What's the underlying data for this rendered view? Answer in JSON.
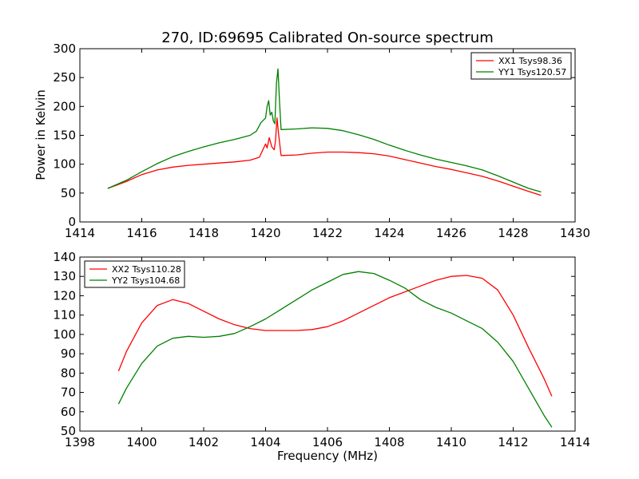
{
  "chart_data": [
    {
      "type": "line",
      "title": "270, ID:69695 Calibrated On-source spectrum",
      "xlabel": "",
      "ylabel": "Power in Kelvin",
      "xlim": [
        1414,
        1430
      ],
      "ylim": [
        0,
        300
      ],
      "xticks": [
        1414,
        1416,
        1418,
        1420,
        1422,
        1424,
        1426,
        1428,
        1430
      ],
      "yticks": [
        0,
        50,
        100,
        150,
        200,
        250,
        300
      ],
      "legend_position": "top-right",
      "series": [
        {
          "name": "XX1 Tsys98.36",
          "color": "#ff0000",
          "x": [
            1414.9,
            1415.5,
            1416.0,
            1416.5,
            1417.0,
            1417.5,
            1418.0,
            1418.5,
            1419.0,
            1419.5,
            1419.8,
            1420.0,
            1420.05,
            1420.12,
            1420.2,
            1420.28,
            1420.32,
            1420.37,
            1420.42,
            1420.5,
            1421.0,
            1421.5,
            1422.0,
            1422.5,
            1423.0,
            1423.5,
            1424.0,
            1424.5,
            1425.0,
            1425.5,
            1426.0,
            1426.5,
            1427.0,
            1427.5,
            1428.0,
            1428.5,
            1428.9
          ],
          "y": [
            58,
            70,
            82,
            90,
            95,
            98,
            100,
            102,
            104,
            107,
            112,
            135,
            128,
            146,
            130,
            125,
            140,
            180,
            152,
            115,
            116,
            119,
            121,
            121,
            120,
            118,
            114,
            108,
            102,
            96,
            91,
            85,
            79,
            71,
            62,
            53,
            46
          ]
        },
        {
          "name": "YY1 Tsys120.57",
          "color": "#008000",
          "x": [
            1414.9,
            1415.5,
            1416.0,
            1416.5,
            1417.0,
            1417.5,
            1418.0,
            1418.5,
            1419.0,
            1419.5,
            1419.7,
            1419.85,
            1420.0,
            1420.05,
            1420.1,
            1420.15,
            1420.2,
            1420.25,
            1420.3,
            1420.35,
            1420.4,
            1420.45,
            1420.5,
            1421.0,
            1421.5,
            1422.0,
            1422.5,
            1423.0,
            1423.5,
            1424.0,
            1424.5,
            1425.0,
            1425.5,
            1426.0,
            1426.5,
            1427.0,
            1427.5,
            1428.0,
            1428.5,
            1428.9
          ],
          "y": [
            58,
            72,
            87,
            101,
            113,
            122,
            130,
            137,
            143,
            150,
            157,
            172,
            180,
            200,
            210,
            185,
            190,
            175,
            170,
            240,
            265,
            210,
            160,
            161,
            163,
            162,
            158,
            151,
            143,
            133,
            124,
            116,
            109,
            103,
            97,
            90,
            80,
            69,
            58,
            52
          ]
        }
      ]
    },
    {
      "type": "line",
      "title": "",
      "xlabel": "Frequency (MHz)",
      "ylabel": "",
      "xlim": [
        1398,
        1414
      ],
      "ylim": [
        50,
        140
      ],
      "xticks": [
        1398,
        1400,
        1402,
        1404,
        1406,
        1408,
        1410,
        1412,
        1414
      ],
      "yticks": [
        50,
        60,
        70,
        80,
        90,
        100,
        110,
        120,
        130,
        140
      ],
      "legend_position": "top-left",
      "series": [
        {
          "name": "XX2 Tsys110.28",
          "color": "#ff0000",
          "x": [
            1399.25,
            1399.5,
            1400.0,
            1400.5,
            1401.0,
            1401.5,
            1402.0,
            1402.5,
            1403.0,
            1403.5,
            1404.0,
            1404.5,
            1405.0,
            1405.5,
            1406.0,
            1406.5,
            1407.0,
            1407.5,
            1408.0,
            1408.5,
            1409.0,
            1409.5,
            1410.0,
            1410.5,
            1411.0,
            1411.5,
            1412.0,
            1412.5,
            1413.0,
            1413.25
          ],
          "y": [
            81,
            91,
            106,
            115,
            118,
            116,
            112,
            108,
            105,
            103,
            102,
            102,
            102,
            102.5,
            104,
            107,
            111,
            115,
            119,
            122,
            125,
            128,
            130,
            130.5,
            129,
            123,
            110,
            93,
            77,
            68
          ]
        },
        {
          "name": "YY2 Tsys104.68",
          "color": "#008000",
          "x": [
            1399.25,
            1399.5,
            1400.0,
            1400.5,
            1401.0,
            1401.5,
            1402.0,
            1402.5,
            1403.0,
            1403.5,
            1404.0,
            1404.5,
            1405.0,
            1405.5,
            1406.0,
            1406.5,
            1407.0,
            1407.5,
            1408.0,
            1408.5,
            1409.0,
            1409.5,
            1410.0,
            1410.5,
            1411.0,
            1411.5,
            1412.0,
            1412.5,
            1413.0,
            1413.25
          ],
          "y": [
            64,
            72,
            85,
            94,
            98,
            99,
            98.5,
            99,
            100.5,
            104,
            108,
            113,
            118,
            123,
            127,
            131,
            132.5,
            131.5,
            128,
            124,
            118,
            114,
            111,
            107,
            103,
            96,
            86,
            72,
            58,
            52
          ]
        }
      ]
    }
  ]
}
